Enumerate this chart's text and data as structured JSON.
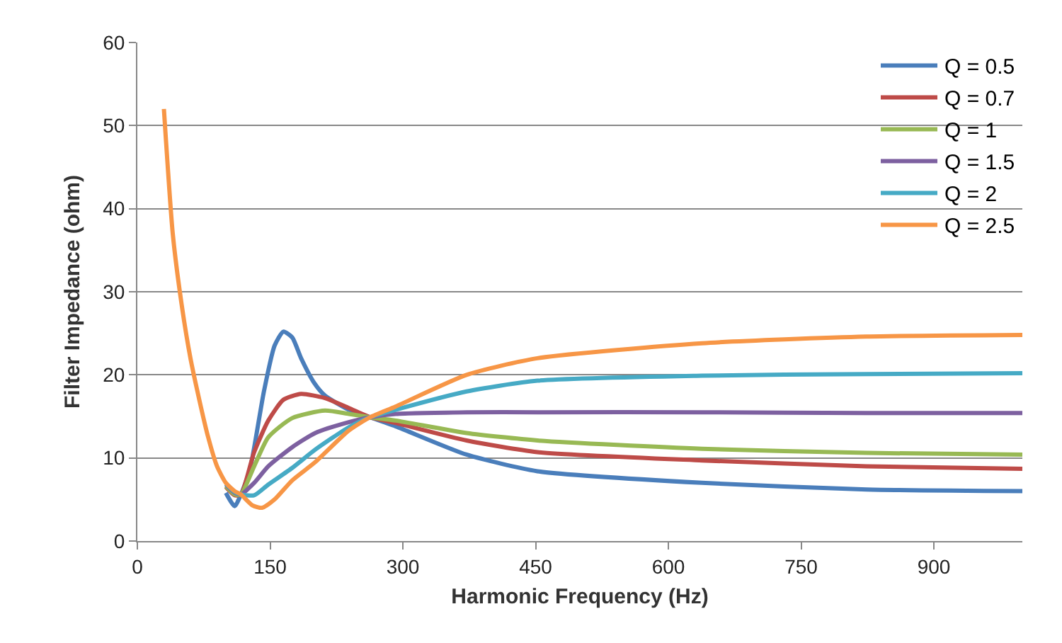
{
  "chart_data": {
    "type": "line",
    "xlabel": "Harmonic Frequency (Hz)",
    "ylabel": "Filter Impedance (ohm)",
    "xlim": [
      0,
      1000
    ],
    "xticks": [
      0,
      150,
      300,
      450,
      600,
      750,
      900
    ],
    "ylim": [
      0,
      60
    ],
    "yticks": [
      0,
      10,
      20,
      30,
      40,
      50,
      60
    ],
    "grid": "y",
    "legend": "top right",
    "marker": "none",
    "line_style": "solid",
    "series": [
      {
        "name": "Q = 0.5",
        "color": "#4a7ebb",
        "x": [
          100,
          110,
          117,
          127,
          143,
          155,
          165,
          175,
          185,
          200,
          212,
          239,
          263,
          292,
          372,
          452,
          638,
          824,
          1000
        ],
        "values": [
          5.8,
          4.2,
          5.6,
          8.5,
          18,
          23.5,
          25.2,
          24.5,
          22,
          19,
          17.5,
          15.8,
          14.9,
          13.8,
          10.4,
          8.4,
          7.0,
          6.2,
          6.0
        ]
      },
      {
        "name": "Q = 0.7",
        "color": "#be4b48",
        "x": [
          100,
          110,
          117,
          132,
          148,
          165,
          185,
          212,
          239,
          263,
          292,
          372,
          452,
          638,
          824,
          1000
        ],
        "values": [
          6.5,
          5.5,
          5.6,
          10.7,
          14.5,
          17,
          17.7,
          17.2,
          16,
          14.9,
          14.2,
          12.1,
          10.7,
          9.7,
          9.0,
          8.7
        ]
      },
      {
        "name": "Q = 1",
        "color": "#98b954",
        "x": [
          100,
          110,
          117,
          132,
          148,
          175,
          212,
          239,
          263,
          292,
          372,
          452,
          638,
          824,
          1000
        ],
        "values": [
          6.6,
          5.6,
          5.6,
          9,
          12.5,
          14.8,
          15.7,
          15.3,
          14.9,
          14.5,
          13,
          12.1,
          11.1,
          10.6,
          10.4
        ]
      },
      {
        "name": "Q = 1.5",
        "color": "#7d60a0",
        "x": [
          100,
          110,
          117,
          132,
          148,
          175,
          201,
          239,
          263,
          292,
          372,
          452,
          638,
          824,
          1000
        ],
        "values": [
          6.8,
          5.8,
          5.6,
          7,
          9,
          11.3,
          13,
          14.3,
          14.9,
          15.3,
          15.5,
          15.5,
          15.5,
          15.4,
          15.4
        ]
      },
      {
        "name": "Q = 2",
        "color": "#46aac5",
        "x": [
          100,
          110,
          117,
          132,
          148,
          175,
          201,
          239,
          263,
          292,
          372,
          452,
          638,
          824,
          1000
        ],
        "values": [
          6.9,
          5.9,
          5.6,
          5.5,
          6.8,
          8.8,
          11,
          13.7,
          14.9,
          15.8,
          18,
          19.3,
          19.9,
          20.1,
          20.2
        ]
      },
      {
        "name": "Q = 2.5",
        "color": "#f79646",
        "x": [
          30,
          40,
          50,
          60,
          70,
          80,
          90,
          100,
          110,
          117,
          130,
          141,
          155,
          175,
          201,
          239,
          263,
          292,
          372,
          452,
          638,
          824,
          1000
        ],
        "values": [
          52,
          37,
          28.5,
          22,
          17,
          12.5,
          9,
          7,
          6,
          5.6,
          4.3,
          4.0,
          5,
          7.3,
          9.5,
          13.3,
          14.9,
          16.2,
          20,
          22,
          23.8,
          24.6,
          24.8
        ]
      }
    ]
  }
}
